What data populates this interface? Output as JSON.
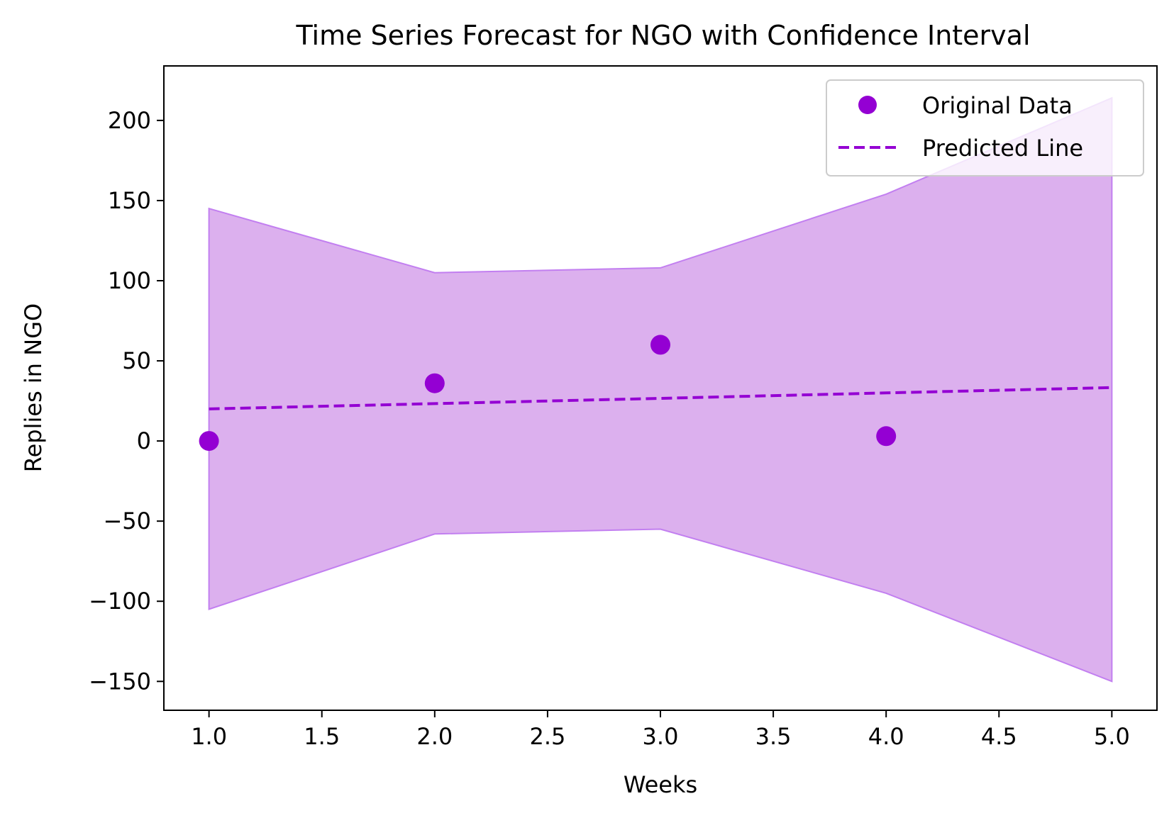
{
  "chart_data": {
    "type": "line",
    "title": "Time Series Forecast for NGO with Confidence Interval",
    "xlabel": "Weeks",
    "ylabel": "Replies in NGO",
    "xlim": [
      0.8,
      5.2
    ],
    "ylim": [
      -168,
      234
    ],
    "x_ticks": [
      1.0,
      1.5,
      2.0,
      2.5,
      3.0,
      3.5,
      4.0,
      4.5,
      5.0
    ],
    "x_tick_labels": [
      "1.0",
      "1.5",
      "2.0",
      "2.5",
      "3.0",
      "3.5",
      "4.0",
      "4.5",
      "5.0"
    ],
    "y_ticks": [
      -150,
      -100,
      -50,
      0,
      50,
      100,
      150,
      200
    ],
    "y_tick_labels": [
      "−150",
      "−100",
      "−50",
      "0",
      "50",
      "100",
      "150",
      "200"
    ],
    "grid": false,
    "legend_position": "upper right",
    "series": [
      {
        "name": "Original Data",
        "kind": "scatter",
        "color": "#9400d3",
        "x": [
          1,
          2,
          3,
          4
        ],
        "y": [
          0,
          36,
          60,
          3
        ]
      },
      {
        "name": "Predicted Line",
        "kind": "dashed-line",
        "color": "#9400d3",
        "x": [
          1,
          2,
          3,
          4,
          5
        ],
        "y": [
          20,
          23.3,
          26.6,
          30,
          33.3
        ]
      }
    ],
    "confidence_interval": {
      "fill_color": "#dcb0ee",
      "edge_color": "#c27ff0",
      "x": [
        1,
        2,
        3,
        4,
        5
      ],
      "lower": [
        -105,
        -58,
        -55,
        -95,
        -150
      ],
      "upper": [
        145,
        105,
        108,
        154,
        214
      ]
    }
  }
}
